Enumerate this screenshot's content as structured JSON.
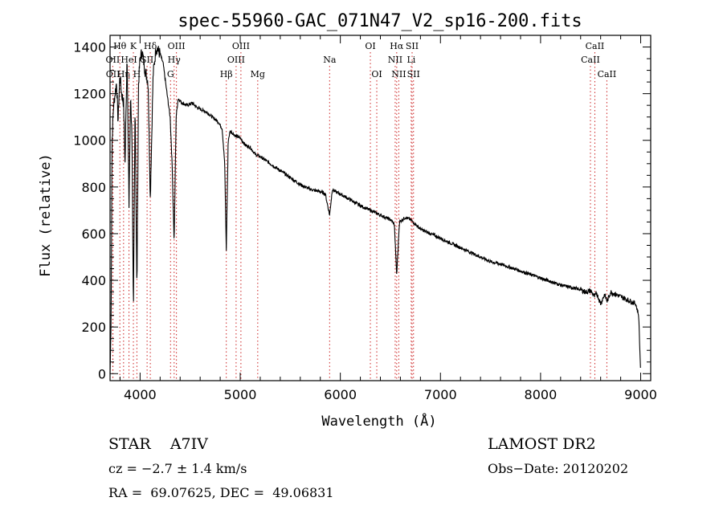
{
  "chart_data": {
    "type": "line",
    "title": "spec-55960-GAC_071N47_V2_sp16-200.fits",
    "xlabel": "Wavelength (Å)",
    "ylabel": "Flux (relative)",
    "xlim": [
      3700,
      9100
    ],
    "ylim": [
      -30,
      1450
    ],
    "xticks": [
      4000,
      5000,
      6000,
      7000,
      8000,
      9000
    ],
    "xtick_labels": [
      "4000",
      "5000",
      "6000",
      "7000",
      "8000",
      "9000"
    ],
    "yticks": [
      0,
      200,
      400,
      600,
      800,
      1000,
      1200,
      1400
    ],
    "ytick_labels": [
      "0",
      "200",
      "400",
      "600",
      "800",
      "1000",
      "1200",
      "1400"
    ],
    "grid": false,
    "line_color": "#000000",
    "marker_color": "#cc2222",
    "series": [
      {
        "x": [
          3700,
          3710,
          3720,
          3735,
          3750,
          3765,
          3780,
          3798,
          3815,
          3835,
          3850,
          3870,
          3889,
          3905,
          3920,
          3933,
          3950,
          3968,
          3985,
          4000,
          4020,
          4050,
          4080,
          4102,
          4130,
          4160,
          4200,
          4230,
          4260,
          4300,
          4320,
          4340,
          4360,
          4380,
          4420,
          4470,
          4520,
          4570,
          4620,
          4670,
          4720,
          4780,
          4820,
          4845,
          4861,
          4880,
          4900,
          4950,
          5000,
          5050,
          5100,
          5150,
          5200,
          5300,
          5400,
          5500,
          5600,
          5700,
          5800,
          5850,
          5893,
          5920,
          5950,
          6000,
          6100,
          6200,
          6300,
          6400,
          6500,
          6540,
          6563,
          6590,
          6650,
          6700,
          6750,
          6800,
          6900,
          7000,
          7100,
          7200,
          7300,
          7400,
          7500,
          7600,
          7700,
          7800,
          7900,
          8000,
          8100,
          8200,
          8300,
          8400,
          8450,
          8500,
          8540,
          8560,
          8600,
          8640,
          8665,
          8700,
          8750,
          8800,
          8850,
          8900,
          8950,
          8980,
          9000
        ],
        "y": [
          0,
          200,
          1000,
          1150,
          1200,
          1250,
          1080,
          1280,
          1200,
          1160,
          900,
          1380,
          720,
          1200,
          1000,
          230,
          1180,
          350,
          1250,
          1350,
          1380,
          1300,
          1250,
          750,
          1280,
          1400,
          1370,
          1330,
          1230,
          1100,
          900,
          560,
          1100,
          1180,
          1160,
          1150,
          1160,
          1140,
          1130,
          1120,
          1100,
          1080,
          1050,
          900,
          530,
          1000,
          1040,
          1020,
          1010,
          980,
          970,
          940,
          930,
          900,
          870,
          840,
          810,
          790,
          780,
          770,
          680,
          790,
          780,
          770,
          745,
          720,
          700,
          680,
          660,
          640,
          420,
          650,
          670,
          660,
          640,
          620,
          600,
          580,
          560,
          540,
          520,
          500,
          480,
          470,
          455,
          440,
          425,
          410,
          395,
          380,
          370,
          360,
          350,
          355,
          330,
          345,
          300,
          340,
          310,
          350,
          340,
          330,
          320,
          310,
          300,
          250,
          0
        ]
      }
    ],
    "spectral_lines": [
      {
        "label": "Hθ",
        "x": 3798,
        "row": 1
      },
      {
        "label": "OII",
        "x": 3727,
        "row": 2
      },
      {
        "label": "OII",
        "x": 3729,
        "row": 3
      },
      {
        "label": "Hη",
        "x": 3835,
        "row": 3
      },
      {
        "label": "K",
        "x": 3933,
        "row": 1
      },
      {
        "label": "HeI",
        "x": 3889,
        "row": 2
      },
      {
        "label": "H",
        "x": 3968,
        "row": 3
      },
      {
        "label": "SII",
        "x": 4070,
        "row": 2
      },
      {
        "label": "Hδ",
        "x": 4102,
        "row": 1
      },
      {
        "label": "OIII",
        "x": 4363,
        "row": 1
      },
      {
        "label": "Hγ",
        "x": 4340,
        "row": 2
      },
      {
        "label": "G",
        "x": 4304,
        "row": 3
      },
      {
        "label": "Hβ",
        "x": 4861,
        "row": 3
      },
      {
        "label": "OIII",
        "x": 4959,
        "row": 2
      },
      {
        "label": "OIII",
        "x": 5007,
        "row": 1
      },
      {
        "label": "Mg",
        "x": 5175,
        "row": 3
      },
      {
        "label": "Na",
        "x": 5893,
        "row": 2
      },
      {
        "label": "OI",
        "x": 6300,
        "row": 1
      },
      {
        "label": "OI",
        "x": 6364,
        "row": 3
      },
      {
        "label": "Hα",
        "x": 6563,
        "row": 1
      },
      {
        "label": "NII",
        "x": 6548,
        "row": 2
      },
      {
        "label": "NII",
        "x": 6584,
        "row": 3
      },
      {
        "label": "SII",
        "x": 6717,
        "row": 1
      },
      {
        "label": "Li",
        "x": 6708,
        "row": 2
      },
      {
        "label": "SII",
        "x": 6731,
        "row": 3
      },
      {
        "label": "CaII",
        "x": 8542,
        "row": 1
      },
      {
        "label": "CaII",
        "x": 8498,
        "row": 2
      },
      {
        "label": "CaII",
        "x": 8662,
        "row": 3
      }
    ]
  },
  "info": {
    "object": "STAR    A7IV",
    "survey": "LAMOST DR2",
    "redshift": "cz = −2.7 ± 1.4 km/s",
    "obs_date": "Obs−Date: 20120202",
    "coords": "RA =  69.07625, DEC =  49.06831"
  }
}
